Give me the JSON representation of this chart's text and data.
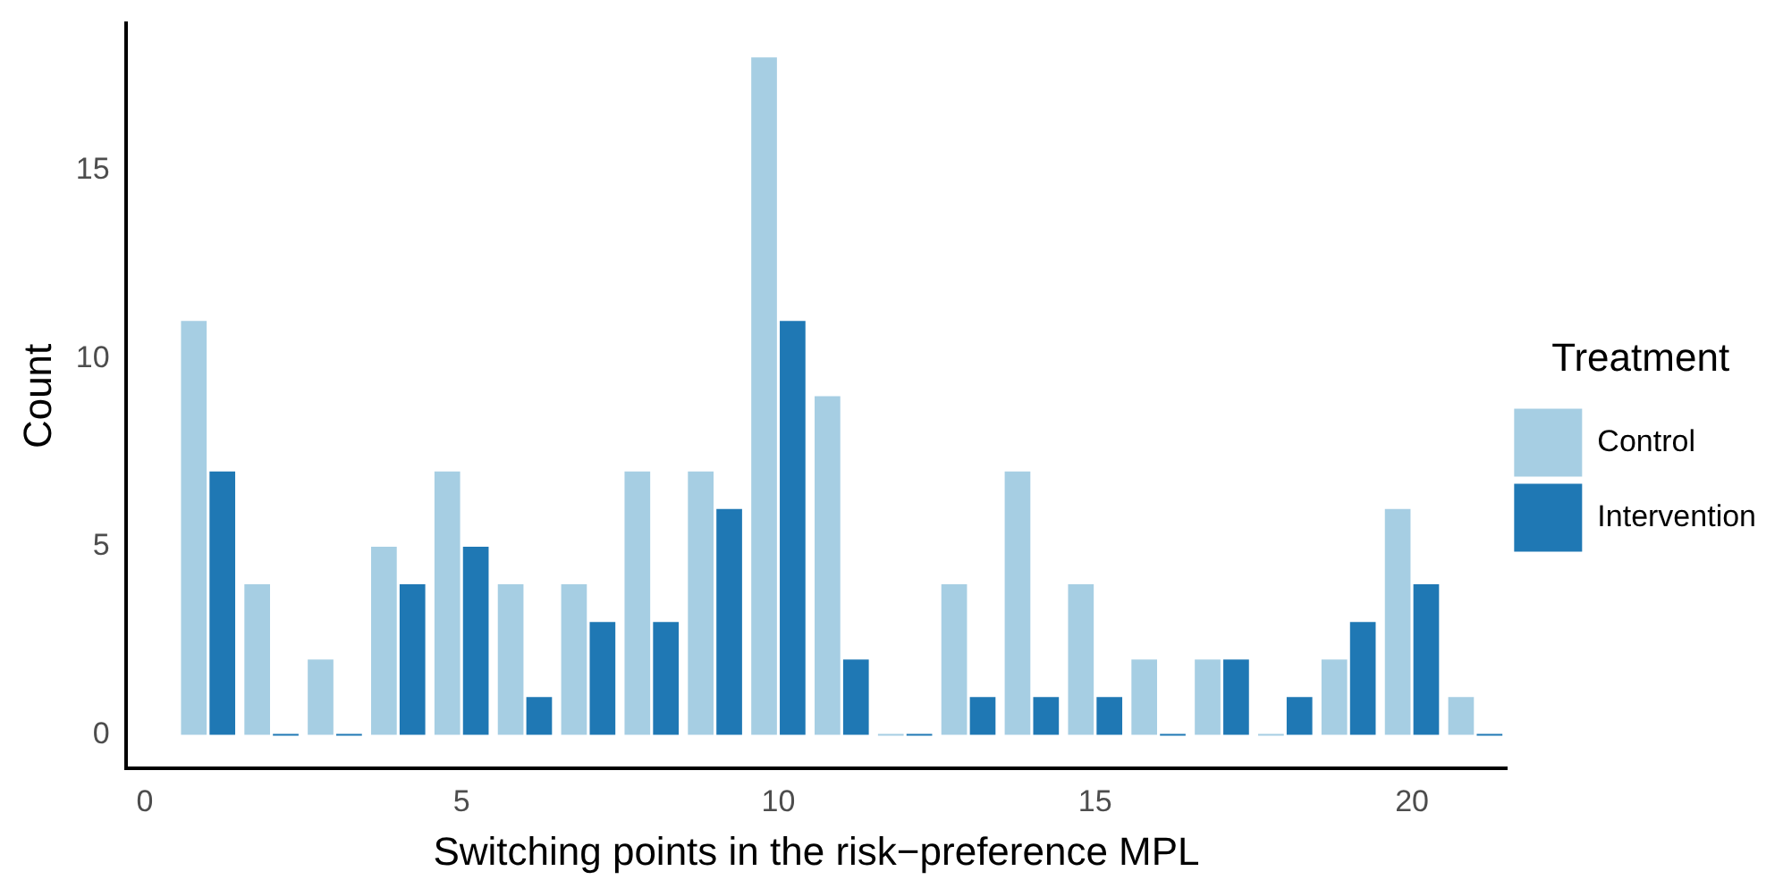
{
  "chart_data": {
    "type": "bar",
    "xlabel": "Switching points in the risk−preference MPL",
    "ylabel": "Count",
    "legend_title": "Treatment",
    "x": [
      1,
      2,
      3,
      4,
      5,
      6,
      7,
      8,
      9,
      10,
      11,
      12,
      13,
      14,
      15,
      16,
      17,
      18,
      19,
      20,
      21
    ],
    "series": [
      {
        "name": "Control",
        "color": "#a6cee3",
        "values": [
          11,
          4,
          2,
          5,
          7,
          4,
          4,
          7,
          7,
          18,
          9,
          0,
          4,
          7,
          4,
          2,
          2,
          0,
          2,
          6,
          1
        ]
      },
      {
        "name": "Intervention",
        "color": "#1f78b4",
        "values": [
          7,
          0,
          0,
          4,
          5,
          1,
          3,
          3,
          6,
          11,
          2,
          0,
          1,
          1,
          1,
          0,
          2,
          1,
          3,
          4,
          0
        ]
      }
    ],
    "xlim": [
      -0.3,
      21.5
    ],
    "xticks": [
      0,
      5,
      10,
      15,
      20
    ],
    "ylim": [
      -0.9,
      18.9
    ],
    "yticks": [
      0,
      5,
      10,
      15
    ],
    "grid": false,
    "legend": "right"
  }
}
